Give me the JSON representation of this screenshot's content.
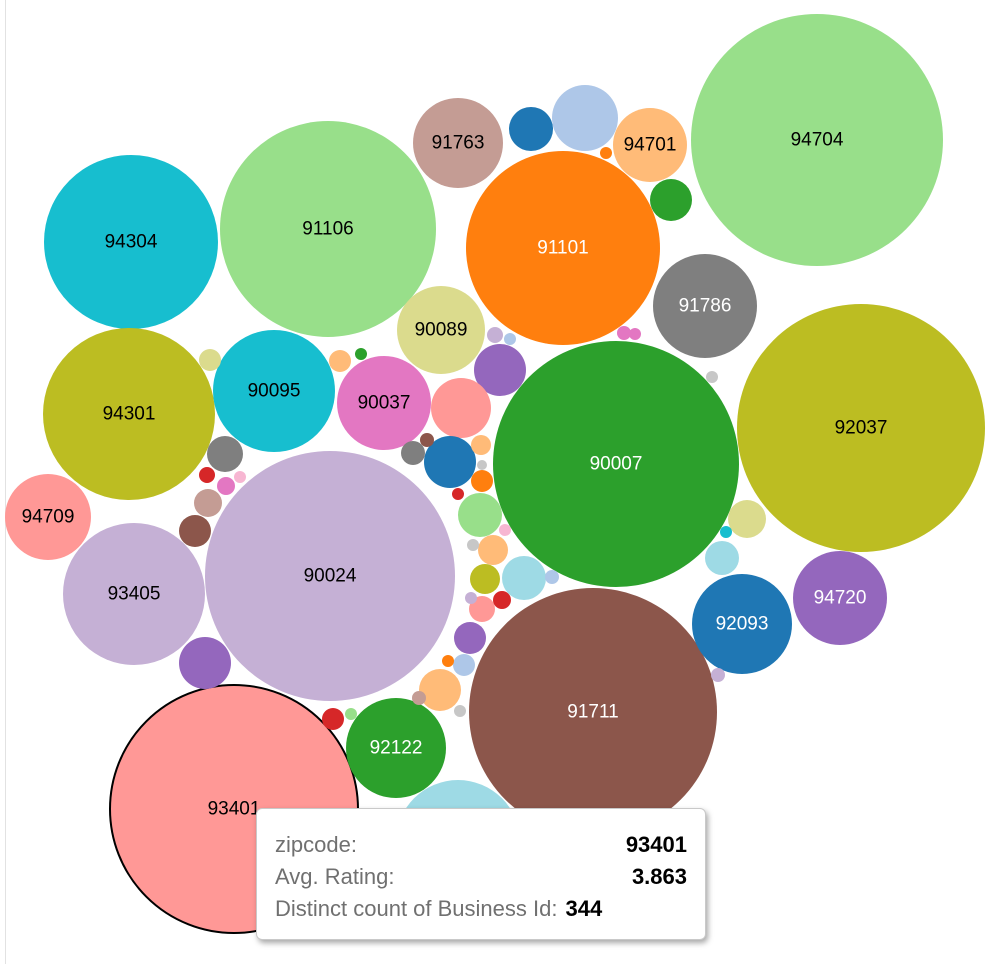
{
  "chart_data": {
    "type": "bubble",
    "size_measure": "Distinct count of Business Id",
    "color_measure": "zipcode",
    "bubbles": [
      {
        "zipcode": "94704",
        "label": "94704",
        "color": "#98df8a"
      },
      {
        "zipcode": "92037",
        "label": "92037",
        "color": "#bcbd22"
      },
      {
        "zipcode": "90024",
        "label": "90024",
        "color": "#c5b0d5"
      },
      {
        "zipcode": "91711",
        "label": "91711",
        "color": "#8c564b"
      },
      {
        "zipcode": "90007",
        "label": "90007",
        "color": "#2ca02c"
      },
      {
        "zipcode": "93401",
        "label": "93401",
        "color": "#ff9896",
        "selected": true
      },
      {
        "zipcode": "91106",
        "label": "91106",
        "color": "#98df8a"
      },
      {
        "zipcode": "91101",
        "label": "91101",
        "color": "#ff7f0e"
      },
      {
        "zipcode": "94304",
        "label": "94304",
        "color": "#17becf"
      },
      {
        "zipcode": "94301",
        "label": "94301",
        "color": "#bcbd22"
      },
      {
        "zipcode": "93405",
        "label": "93405",
        "color": "#c5b0d5"
      },
      {
        "zipcode": "91786",
        "label": "91786",
        "color": "#7f7f7f"
      },
      {
        "zipcode": "90095",
        "label": "90095",
        "color": "#17becf"
      },
      {
        "zipcode": "91763",
        "label": "91763",
        "color": "#c49c94"
      },
      {
        "zipcode": "90037",
        "label": "90037",
        "color": "#e377c2"
      },
      {
        "zipcode": "92093",
        "label": "92093",
        "color": "#1f77b4"
      },
      {
        "zipcode": "92122",
        "label": "92122",
        "color": "#2ca02c"
      },
      {
        "zipcode": "94720",
        "label": "94720",
        "color": "#9467bd"
      },
      {
        "zipcode": "90089",
        "label": "90089",
        "color": "#dbdb8d"
      },
      {
        "zipcode": "94709",
        "label": "94709",
        "color": "#ff9896"
      },
      {
        "zipcode": "94701",
        "label": "94701",
        "color": "#ffbb78"
      },
      {
        "zipcode": "",
        "label": "",
        "color": "#9edae5"
      },
      {
        "zipcode": "",
        "label": "",
        "color": "#aec7e8"
      },
      {
        "zipcode": "",
        "label": "",
        "color": "#1f77b4"
      },
      {
        "zipcode": "",
        "label": "",
        "color": "#2ca02c"
      },
      {
        "zipcode": "",
        "label": "",
        "color": "#9467bd"
      },
      {
        "zipcode": "",
        "label": "",
        "color": "#ff9896"
      },
      {
        "zipcode": "",
        "label": "",
        "color": "#1f77b4"
      },
      {
        "zipcode": "",
        "label": "",
        "color": "#98df8a"
      },
      {
        "zipcode": "",
        "label": "",
        "color": "#9edae5"
      },
      {
        "zipcode": "",
        "label": "",
        "color": "#9467bd"
      },
      {
        "zipcode": "",
        "label": "",
        "color": "#7f7f7f"
      },
      {
        "zipcode": "",
        "label": "",
        "color": "#ffbb78"
      },
      {
        "zipcode": "",
        "label": "",
        "color": "#9467bd"
      },
      {
        "zipcode": "",
        "label": "",
        "color": "#dbdb8d"
      },
      {
        "zipcode": "",
        "label": "",
        "color": "#bcbd22"
      },
      {
        "zipcode": "",
        "label": "",
        "color": "#c49c94"
      },
      {
        "zipcode": "",
        "label": "",
        "color": "#8c564b"
      },
      {
        "zipcode": "",
        "label": "",
        "color": "#7f7f7f"
      },
      {
        "zipcode": "",
        "label": "",
        "color": "#9edae5"
      },
      {
        "zipcode": "",
        "label": "",
        "color": "#ff9896"
      },
      {
        "zipcode": "",
        "label": "",
        "color": "#d62728"
      },
      {
        "zipcode": "",
        "label": "",
        "color": "#ffbb78"
      },
      {
        "zipcode": "",
        "label": "",
        "color": "#ff7f0e"
      },
      {
        "zipcode": "",
        "label": "",
        "color": "#ffbb78"
      },
      {
        "zipcode": "",
        "label": "",
        "color": "#8c564b"
      },
      {
        "zipcode": "",
        "label": "",
        "color": "#d62728"
      },
      {
        "zipcode": "",
        "label": "",
        "color": "#dbdb8d"
      },
      {
        "zipcode": "",
        "label": "",
        "color": "#aec7e8"
      },
      {
        "zipcode": "",
        "label": "",
        "color": "#d62728"
      },
      {
        "zipcode": "",
        "label": "",
        "color": "#e377c2"
      },
      {
        "zipcode": "",
        "label": "",
        "color": "#ff7f0e"
      },
      {
        "zipcode": "",
        "label": "",
        "color": "#e377c2"
      },
      {
        "zipcode": "",
        "label": "",
        "color": "#2ca02c"
      },
      {
        "zipcode": "",
        "label": "",
        "color": "#ffbb78"
      },
      {
        "zipcode": "",
        "label": "",
        "color": "#c49c94"
      },
      {
        "zipcode": "",
        "label": "",
        "color": "#17becf"
      },
      {
        "zipcode": "",
        "label": "",
        "color": "#c7c7c7"
      },
      {
        "zipcode": "",
        "label": "",
        "color": "#aec7e8"
      },
      {
        "zipcode": "",
        "label": "",
        "color": "#f7b6d2"
      },
      {
        "zipcode": "",
        "label": "",
        "color": "#aec7e8"
      },
      {
        "zipcode": "",
        "label": "",
        "color": "#c5b0d5"
      },
      {
        "zipcode": "",
        "label": "",
        "color": "#c7c7c7"
      },
      {
        "zipcode": "",
        "label": "",
        "color": "#d62728"
      },
      {
        "zipcode": "",
        "label": "",
        "color": "#f7b6d2"
      },
      {
        "zipcode": "",
        "label": "",
        "color": "#c5b0d5"
      },
      {
        "zipcode": "",
        "label": "",
        "color": "#ff7f0e"
      },
      {
        "zipcode": "",
        "label": "",
        "color": "#c7c7c7"
      },
      {
        "zipcode": "",
        "label": "",
        "color": "#98df8a"
      },
      {
        "zipcode": "",
        "label": "",
        "color": "#e377c2"
      },
      {
        "zipcode": "",
        "label": "",
        "color": "#c5b0d5"
      },
      {
        "zipcode": "",
        "label": "",
        "color": "#c7c7c7"
      }
    ]
  },
  "tooltip": {
    "zipcode_label": "zipcode:",
    "zipcode_value": "93401",
    "rating_label": "Avg. Rating:",
    "rating_value": "3.863",
    "count_label": "Distinct count of Business Id:",
    "count_value": "344"
  }
}
